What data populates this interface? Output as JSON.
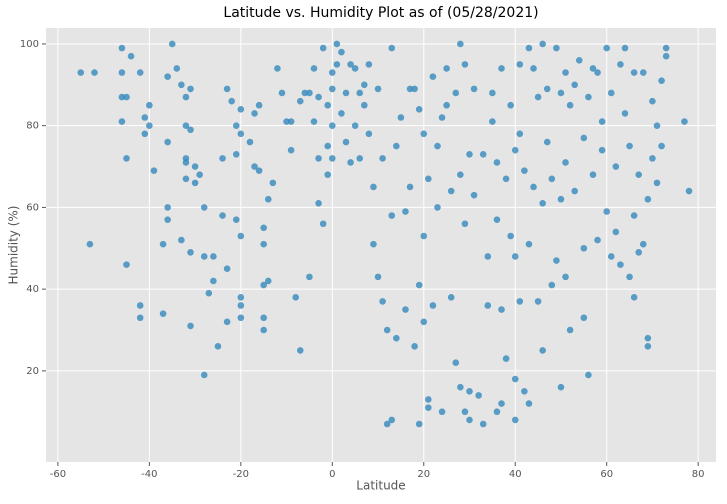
{
  "chart_data": {
    "type": "scatter",
    "title": "Latitude vs. Humidity Plot as of (05/28/2021)",
    "x_label": "Latitude",
    "y_label": "Humidity (%)",
    "color": "#348abd",
    "grid": true,
    "xlim": [
      -62.6,
      83.9
    ],
    "ylim": [
      -2.3,
      103.9
    ],
    "xticks": [
      -60,
      -40,
      -20,
      0,
      20,
      40,
      60,
      80
    ],
    "yticks": [
      20,
      40,
      60,
      80,
      100
    ],
    "x": [
      -55,
      -52,
      -53,
      -46,
      -46,
      -46,
      -45,
      -46,
      -45,
      -45,
      -44,
      -42,
      -41,
      -40,
      -41,
      -40,
      -39,
      -37,
      -37,
      -36,
      -35,
      -36,
      -36,
      -36,
      -42,
      -42,
      -34,
      -33,
      -32,
      -31,
      -32,
      -31,
      -32,
      -32,
      -32,
      -33,
      -31,
      -31,
      -30,
      -30,
      -29,
      -28,
      -28,
      -26,
      -28,
      -27,
      -26,
      -25,
      -24,
      -23,
      -23,
      -24,
      -23,
      -22,
      -21,
      -21,
      -21,
      -20,
      -20,
      -20,
      -20,
      -20,
      -20,
      -18,
      -17,
      -17,
      -16,
      -16,
      -15,
      -15,
      -15,
      -15,
      -15,
      -14,
      -14,
      -13,
      -12,
      -11,
      -10,
      -9,
      -9,
      -8,
      -7,
      -7,
      -6,
      -5,
      -5,
      -4,
      -4,
      -3,
      -3,
      -3,
      -2,
      -2,
      -1,
      -1,
      -1,
      0,
      0,
      0,
      0,
      1,
      1,
      2,
      2,
      3,
      3,
      4,
      4,
      5,
      5,
      6,
      6,
      7,
      7,
      8,
      8,
      9,
      9,
      10,
      10,
      11,
      11,
      12,
      12,
      13,
      13,
      13,
      14,
      14,
      15,
      16,
      16,
      17,
      17,
      18,
      18,
      19,
      19,
      19,
      20,
      20,
      20,
      21,
      21,
      21,
      22,
      22,
      23,
      23,
      24,
      24,
      25,
      25,
      26,
      26,
      27,
      27,
      28,
      28,
      28,
      29,
      29,
      29,
      30,
      30,
      30,
      31,
      31,
      32,
      33,
      33,
      34,
      34,
      35,
      35,
      36,
      36,
      36,
      37,
      37,
      37,
      38,
      38,
      39,
      39,
      40,
      40,
      40,
      40,
      41,
      41,
      41,
      42,
      42,
      43,
      43,
      43,
      44,
      44,
      45,
      45,
      46,
      46,
      46,
      47,
      47,
      48,
      48,
      49,
      49,
      50,
      50,
      50,
      51,
      51,
      51,
      52,
      52,
      53,
      53,
      54,
      55,
      55,
      55,
      56,
      56,
      57,
      57,
      58,
      58,
      59,
      59,
      60,
      60,
      61,
      61,
      62,
      62,
      63,
      63,
      64,
      64,
      65,
      65,
      66,
      66,
      66,
      67,
      67,
      68,
      68,
      69,
      69,
      69,
      70,
      70,
      71,
      71,
      72,
      72,
      73,
      73,
      77,
      78
    ],
    "values": [
      93,
      93,
      51,
      99,
      93,
      87,
      87,
      81,
      72,
      46,
      97,
      93,
      82,
      80,
      78,
      85,
      69,
      51,
      34,
      92,
      100,
      76,
      60,
      57,
      36,
      33,
      94,
      90,
      87,
      89,
      80,
      79,
      72,
      71,
      67,
      52,
      49,
      31,
      66,
      70,
      68,
      60,
      48,
      48,
      19,
      39,
      42,
      26,
      72,
      45,
      32,
      58,
      89,
      86,
      73,
      80,
      57,
      84,
      78,
      38,
      36,
      33,
      53,
      76,
      83,
      70,
      85,
      69,
      55,
      51,
      41,
      30,
      33,
      42,
      62,
      66,
      94,
      88,
      81,
      81,
      74,
      38,
      86,
      25,
      88,
      43,
      88,
      94,
      81,
      87,
      72,
      61,
      56,
      99,
      85,
      75,
      68,
      89,
      80,
      93,
      72,
      95,
      100,
      98,
      83,
      88,
      76,
      95,
      71,
      94,
      80,
      88,
      72,
      90,
      85,
      95,
      78,
      65,
      51,
      43,
      89,
      37,
      72,
      7,
      30,
      99,
      8,
      58,
      28,
      75,
      82,
      59,
      35,
      89,
      65,
      89,
      26,
      41,
      7,
      84,
      32,
      53,
      78,
      13,
      11,
      67,
      92,
      36,
      60,
      75,
      82,
      10,
      85,
      94,
      64,
      38,
      22,
      88,
      16,
      68,
      100,
      95,
      10,
      56,
      15,
      8,
      73,
      63,
      89,
      14,
      7,
      73,
      36,
      48,
      81,
      88,
      10,
      57,
      71,
      94,
      35,
      12,
      23,
      67,
      53,
      85,
      8,
      18,
      74,
      48,
      95,
      78,
      37,
      15,
      69,
      99,
      51,
      12,
      94,
      65,
      87,
      37,
      100,
      25,
      61,
      76,
      89,
      67,
      41,
      99,
      47,
      88,
      62,
      16,
      93,
      71,
      43,
      85,
      30,
      64,
      90,
      96,
      77,
      50,
      33,
      19,
      87,
      94,
      68,
      93,
      52,
      81,
      74,
      99,
      59,
      48,
      88,
      70,
      54,
      46,
      95,
      83,
      99,
      75,
      43,
      58,
      38,
      93,
      68,
      49,
      93,
      51,
      62,
      26,
      28,
      86,
      72,
      66,
      80,
      91,
      75,
      97,
      99,
      81,
      64
    ]
  }
}
